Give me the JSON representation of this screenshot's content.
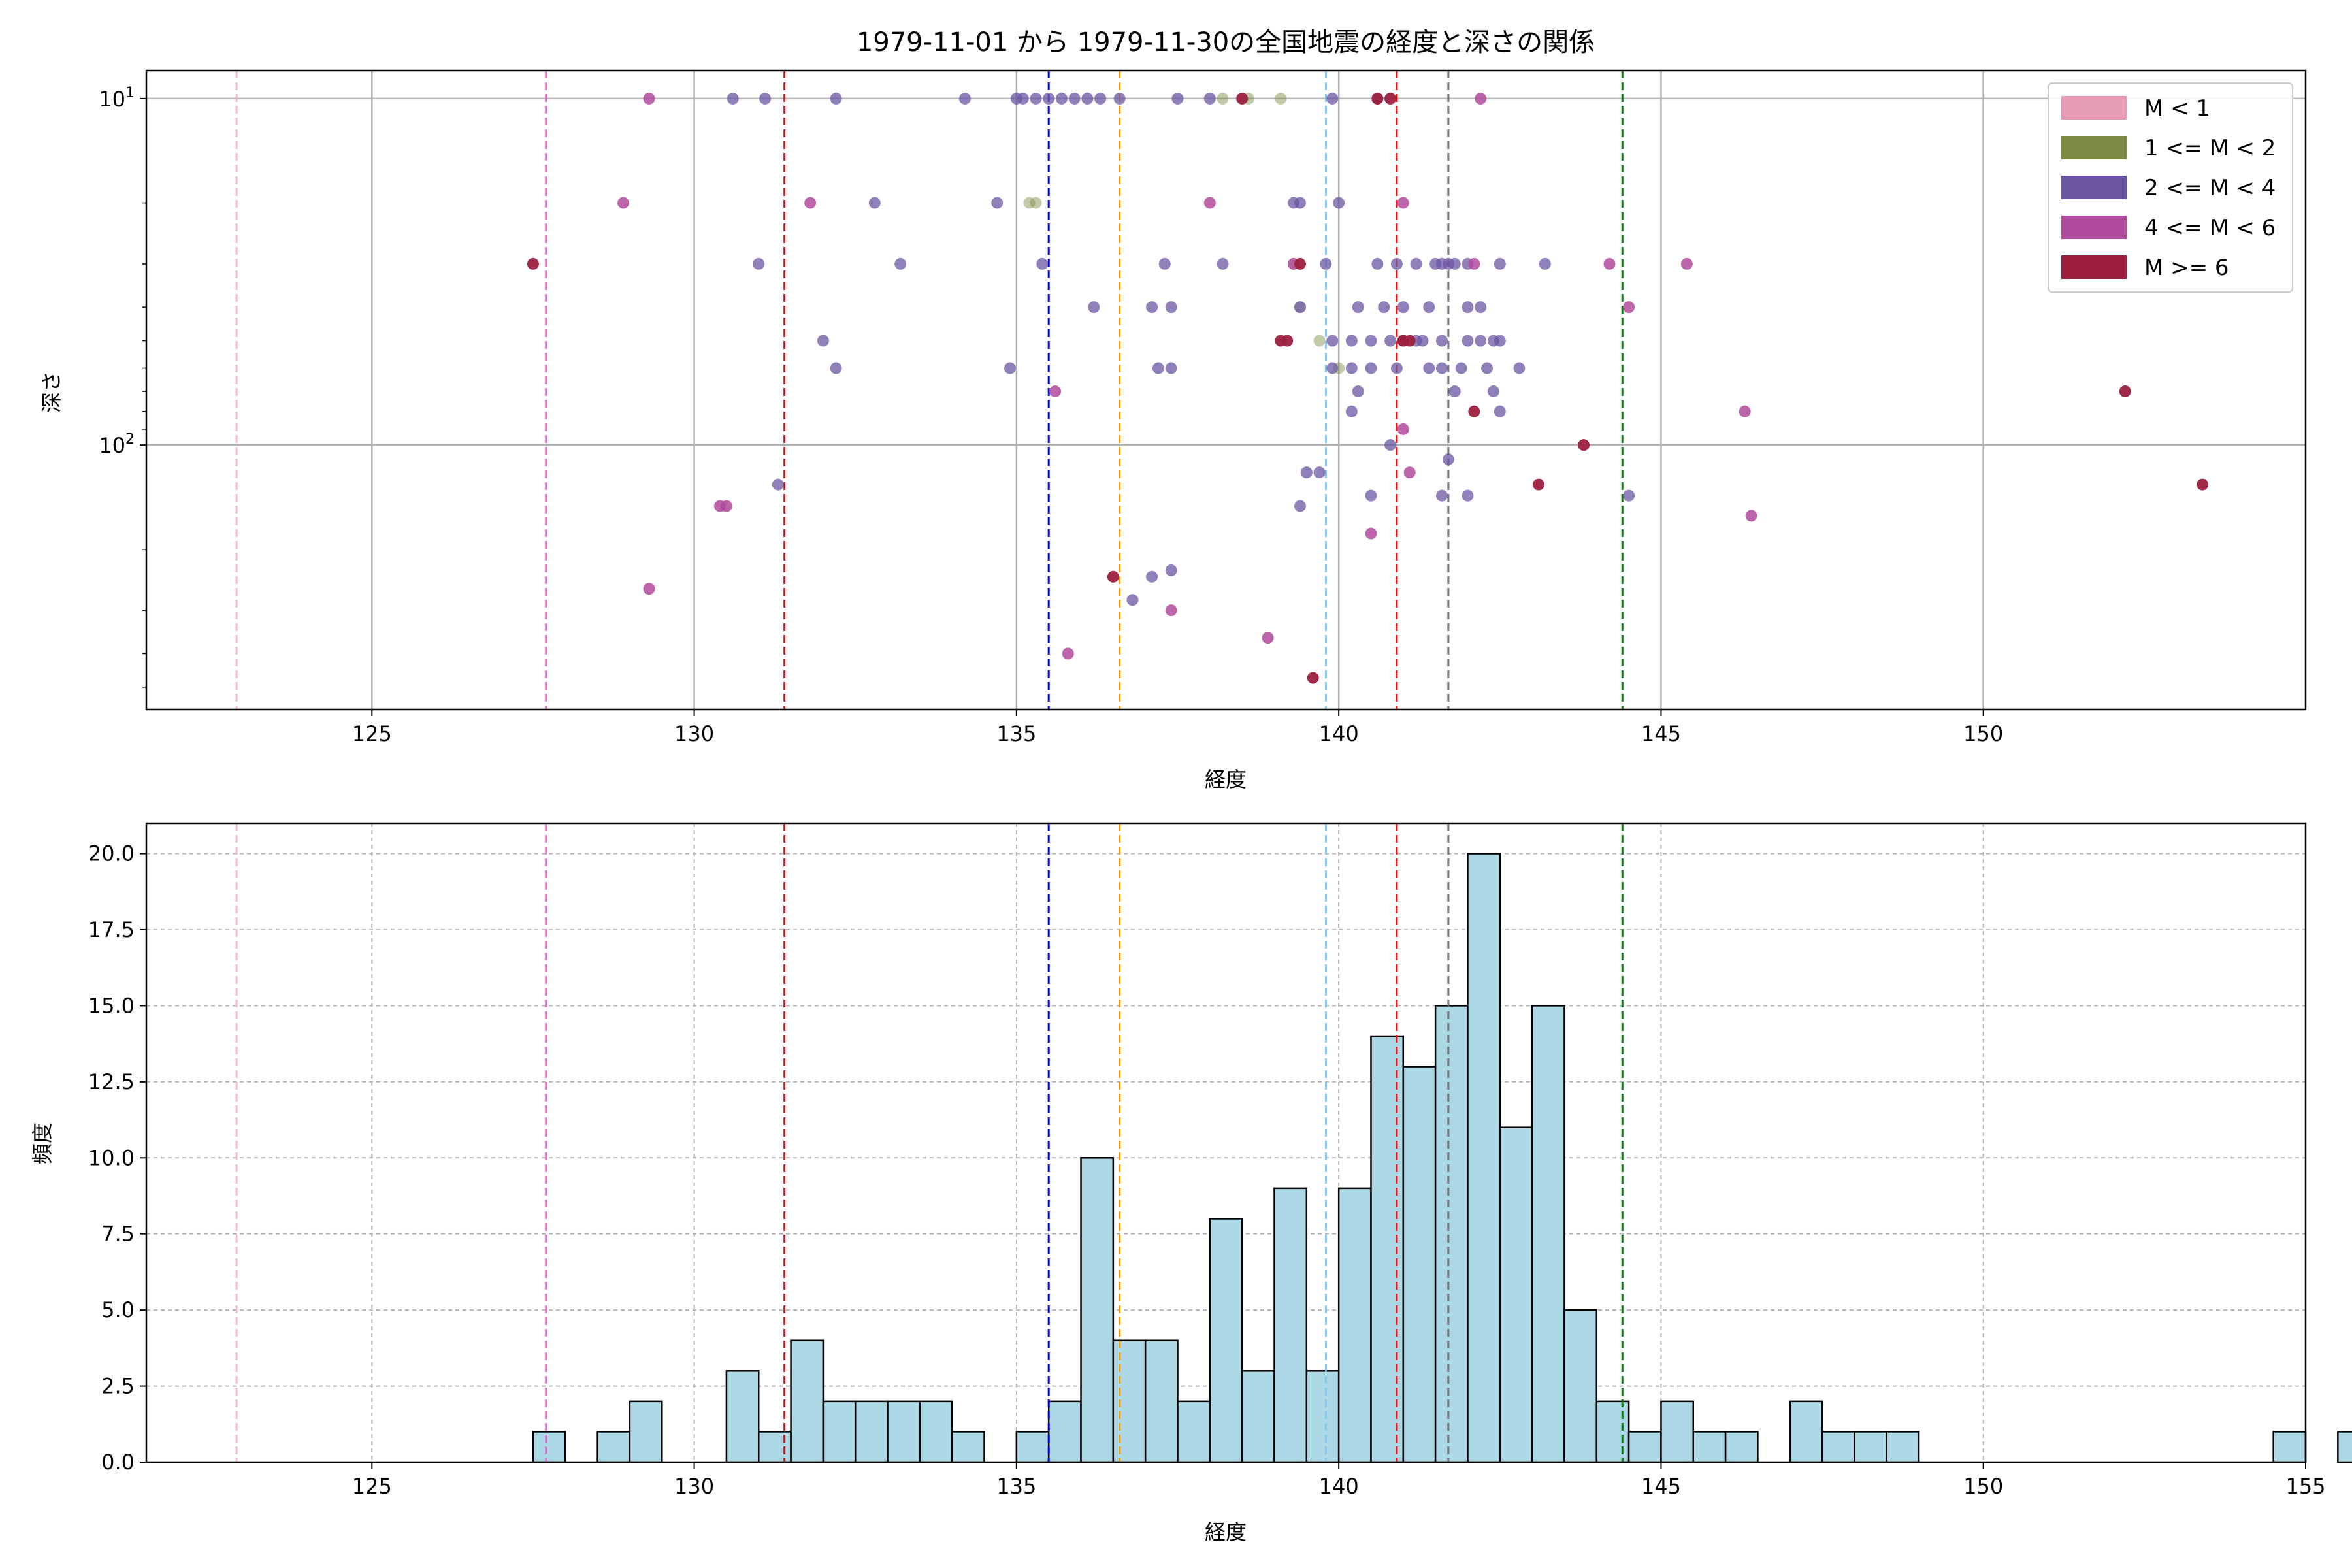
{
  "chart_data": [
    {
      "type": "scatter",
      "title": "1979-11-01 から 1979-11-30の全国地震の経度と深さの関係",
      "xlabel": "経度",
      "ylabel": "深さ",
      "xlim": [
        121.5,
        155
      ],
      "ylim": [
        580,
        8.3
      ],
      "yscale": "log",
      "y_inverted": true,
      "x_ticks": [
        "125",
        "130",
        "135",
        "140",
        "145",
        "150"
      ],
      "x_tick_values": [
        125,
        130,
        135,
        140,
        145,
        150
      ],
      "y_ticks": [
        {
          "base": "10",
          "exp": "1",
          "value": 10
        },
        {
          "base": "10",
          "exp": "2",
          "value": 100
        }
      ],
      "grid": true,
      "legend_position": "top-right",
      "legend": [
        {
          "label": "M < 1",
          "color": "#e69ab4"
        },
        {
          "label": "1 <= M < 2",
          "color": "#7a8a42"
        },
        {
          "label": "2 <= M < 4",
          "color": "#6a55a3"
        },
        {
          "label": "4 <= M < 6",
          "color": "#b04a9c"
        },
        {
          "label": "M >= 6",
          "color": "#9c1f3e"
        }
      ],
      "vlines": [
        {
          "x": 122.9,
          "color": "#f4b6c8"
        },
        {
          "x": 127.7,
          "color": "#e070d6"
        },
        {
          "x": 131.4,
          "color": "#b22222"
        },
        {
          "x": 135.5,
          "color": "#0000d0"
        },
        {
          "x": 136.6,
          "color": "#f0a000"
        },
        {
          "x": 139.8,
          "color": "#80c8e8"
        },
        {
          "x": 140.9,
          "color": "#ee1111"
        },
        {
          "x": 141.7,
          "color": "#707070"
        },
        {
          "x": 144.4,
          "color": "#0a7a0a"
        }
      ],
      "series": [
        {
          "name": "1 <= M < 2",
          "color": "#7a8a42",
          "alpha": 0.45,
          "points": [
            [
              138.6,
              10
            ],
            [
              138.2,
              10
            ],
            [
              139.1,
              10
            ],
            [
              135.2,
              20
            ],
            [
              135.3,
              20
            ],
            [
              139.3,
              30
            ],
            [
              139.4,
              40
            ],
            [
              139.7,
              50
            ],
            [
              140.0,
              60
            ]
          ]
        },
        {
          "name": "2 <= M < 4",
          "color": "#6a55a3",
          "alpha": 0.75,
          "points": [
            [
              130.6,
              10
            ],
            [
              131.1,
              10
            ],
            [
              132.2,
              10
            ],
            [
              134.2,
              10
            ],
            [
              135.0,
              10
            ],
            [
              135.1,
              10
            ],
            [
              135.3,
              10
            ],
            [
              135.5,
              10
            ],
            [
              135.7,
              10
            ],
            [
              135.9,
              10
            ],
            [
              136.1,
              10
            ],
            [
              136.3,
              10
            ],
            [
              136.6,
              10
            ],
            [
              137.5,
              10
            ],
            [
              138.0,
              10
            ],
            [
              139.9,
              10
            ],
            [
              132.8,
              20
            ],
            [
              134.7,
              20
            ],
            [
              139.3,
              20
            ],
            [
              139.4,
              20
            ],
            [
              140.0,
              20
            ],
            [
              131.0,
              30
            ],
            [
              133.2,
              30
            ],
            [
              135.4,
              30
            ],
            [
              137.3,
              30
            ],
            [
              138.2,
              30
            ],
            [
              139.8,
              30
            ],
            [
              140.6,
              30
            ],
            [
              140.9,
              30
            ],
            [
              141.2,
              30
            ],
            [
              141.5,
              30
            ],
            [
              141.6,
              30
            ],
            [
              141.7,
              30
            ],
            [
              141.8,
              30
            ],
            [
              142.0,
              30
            ],
            [
              142.5,
              30
            ],
            [
              143.2,
              30
            ],
            [
              136.2,
              40
            ],
            [
              137.1,
              40
            ],
            [
              137.4,
              40
            ],
            [
              139.4,
              40
            ],
            [
              140.3,
              40
            ],
            [
              140.7,
              40
            ],
            [
              141.0,
              40
            ],
            [
              141.4,
              40
            ],
            [
              142.0,
              40
            ],
            [
              142.2,
              40
            ],
            [
              132.0,
              50
            ],
            [
              139.9,
              50
            ],
            [
              140.2,
              50
            ],
            [
              140.5,
              50
            ],
            [
              140.8,
              50
            ],
            [
              141.0,
              50
            ],
            [
              141.2,
              50
            ],
            [
              141.3,
              50
            ],
            [
              141.6,
              50
            ],
            [
              142.0,
              50
            ],
            [
              142.2,
              50
            ],
            [
              142.4,
              50
            ],
            [
              142.5,
              50
            ],
            [
              132.2,
              60
            ],
            [
              134.9,
              60
            ],
            [
              137.2,
              60
            ],
            [
              137.4,
              60
            ],
            [
              139.9,
              60
            ],
            [
              140.2,
              60
            ],
            [
              140.5,
              60
            ],
            [
              140.9,
              60
            ],
            [
              141.4,
              60
            ],
            [
              141.6,
              60
            ],
            [
              141.9,
              60
            ],
            [
              142.3,
              60
            ],
            [
              142.8,
              60
            ],
            [
              140.3,
              70
            ],
            [
              141.8,
              70
            ],
            [
              142.4,
              70
            ],
            [
              140.2,
              80
            ],
            [
              142.5,
              80
            ],
            [
              140.8,
              100
            ],
            [
              141.7,
              110
            ],
            [
              131.3,
              130
            ],
            [
              139.5,
              120
            ],
            [
              139.7,
              120
            ],
            [
              140.5,
              140
            ],
            [
              141.6,
              140
            ],
            [
              142.0,
              140
            ],
            [
              144.5,
              140
            ],
            [
              139.4,
              150
            ],
            [
              137.1,
              240
            ],
            [
              137.4,
              230
            ],
            [
              136.8,
              280
            ]
          ]
        },
        {
          "name": "4 <= M < 6",
          "color": "#b04a9c",
          "alpha": 0.85,
          "points": [
            [
              129.3,
              10
            ],
            [
              142.2,
              10
            ],
            [
              128.9,
              20
            ],
            [
              131.8,
              20
            ],
            [
              138.0,
              20
            ],
            [
              141.0,
              20
            ],
            [
              139.3,
              30
            ],
            [
              142.1,
              30
            ],
            [
              144.2,
              30
            ],
            [
              145.4,
              30
            ],
            [
              144.5,
              40
            ],
            [
              141.0,
              50
            ],
            [
              135.6,
              70
            ],
            [
              146.3,
              80
            ],
            [
              141.0,
              90
            ],
            [
              141.1,
              120
            ],
            [
              130.5,
              150
            ],
            [
              130.4,
              150
            ],
            [
              146.4,
              160
            ],
            [
              140.5,
              180
            ],
            [
              129.3,
              260
            ],
            [
              137.4,
              300
            ],
            [
              135.8,
              400
            ],
            [
              138.9,
              360
            ],
            [
              140.6,
              10
            ]
          ]
        },
        {
          "name": "M >= 6",
          "color": "#9c1f3e",
          "alpha": 0.95,
          "points": [
            [
              138.5,
              10
            ],
            [
              140.6,
              10
            ],
            [
              140.8,
              10
            ],
            [
              127.5,
              30
            ],
            [
              139.4,
              30
            ],
            [
              139.1,
              50
            ],
            [
              139.2,
              50
            ],
            [
              141.0,
              50
            ],
            [
              141.1,
              50
            ],
            [
              152.2,
              70
            ],
            [
              142.1,
              80
            ],
            [
              143.8,
              100
            ],
            [
              143.1,
              130
            ],
            [
              153.4,
              130
            ],
            [
              136.5,
              240
            ],
            [
              139.6,
              470
            ]
          ]
        }
      ]
    },
    {
      "type": "bar",
      "title": "",
      "xlabel": "経度",
      "ylabel": "頻度",
      "xlim": [
        121.5,
        155
      ],
      "ylim": [
        0,
        21
      ],
      "x_ticks": [
        "125",
        "130",
        "135",
        "140",
        "145",
        "150",
        "155"
      ],
      "x_tick_values": [
        125,
        130,
        135,
        140,
        145,
        150,
        155
      ],
      "y_ticks": [
        "0.0",
        "2.5",
        "5.0",
        "7.5",
        "10.0",
        "12.5",
        "15.0",
        "17.5",
        "20.0"
      ],
      "y_tick_values": [
        0,
        2.5,
        5,
        7.5,
        10,
        12.5,
        15,
        17.5,
        20
      ],
      "grid": true,
      "bar_color": "#add8e6",
      "bin_start": 127.5,
      "bin_width": 0.5,
      "values": [
        1,
        0,
        1,
        2,
        0,
        0,
        3,
        1,
        4,
        2,
        2,
        2,
        2,
        1,
        0,
        1,
        2,
        10,
        4,
        4,
        2,
        8,
        3,
        9,
        3,
        9,
        14,
        13,
        15,
        20,
        11,
        15,
        5,
        2,
        1,
        2,
        1,
        1,
        0,
        2,
        1,
        1,
        1,
        0,
        0,
        0,
        0,
        0,
        0,
        0,
        0,
        0,
        0,
        0,
        1,
        0,
        1
      ],
      "vlines": [
        {
          "x": 122.9,
          "color": "#f4b6c8"
        },
        {
          "x": 127.7,
          "color": "#e070d6"
        },
        {
          "x": 131.4,
          "color": "#b22222"
        },
        {
          "x": 135.5,
          "color": "#0000d0"
        },
        {
          "x": 136.6,
          "color": "#f0a000"
        },
        {
          "x": 139.8,
          "color": "#80c8e8"
        },
        {
          "x": 140.9,
          "color": "#ee1111"
        },
        {
          "x": 141.7,
          "color": "#707070"
        },
        {
          "x": 144.4,
          "color": "#0a7a0a"
        }
      ]
    }
  ]
}
